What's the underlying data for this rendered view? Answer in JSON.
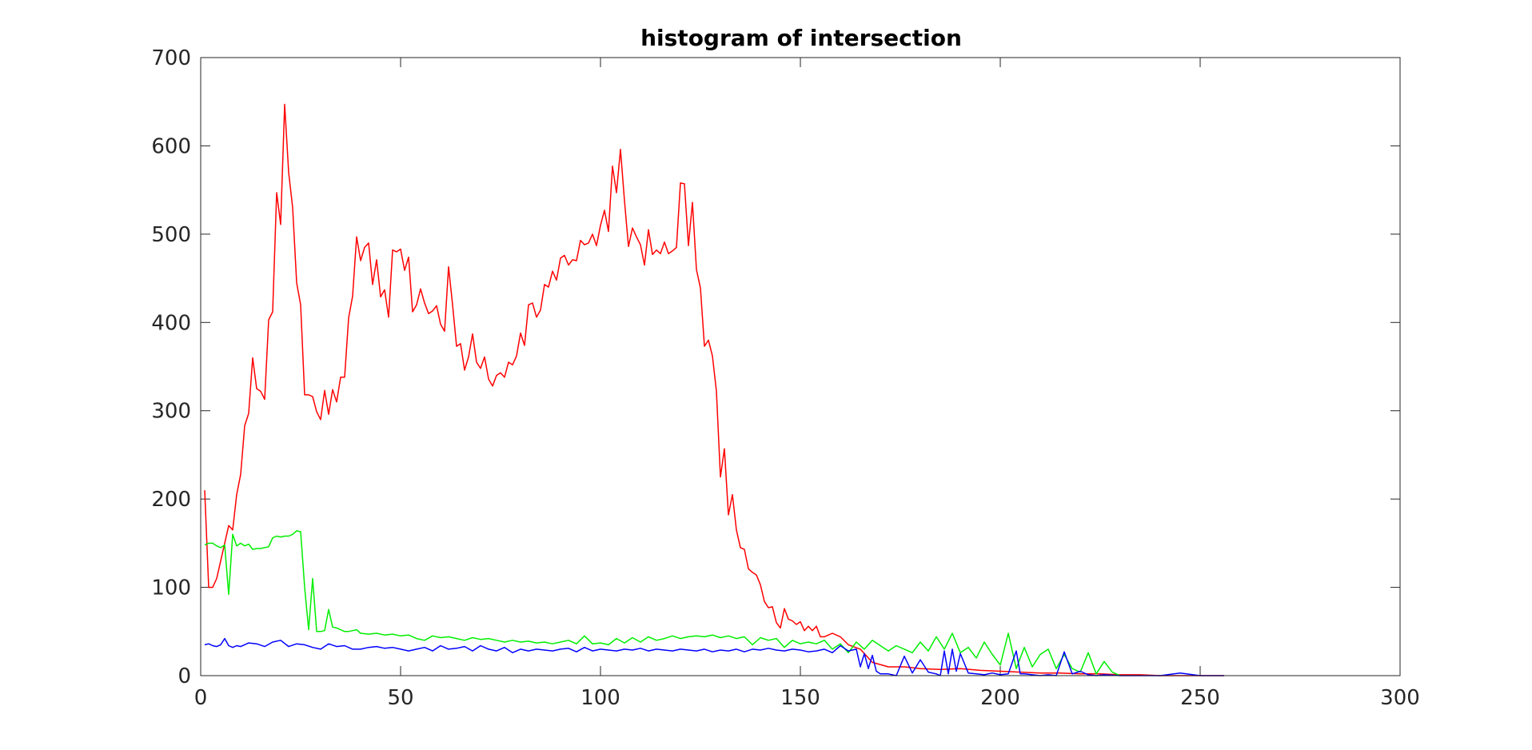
{
  "chart_data": {
    "type": "line",
    "title": "histogram of intersection",
    "xlabel": "",
    "ylabel": "",
    "xlim": [
      0,
      300
    ],
    "ylim": [
      0,
      700
    ],
    "xticks": [
      0,
      50,
      100,
      150,
      200,
      250,
      300
    ],
    "yticks": [
      0,
      100,
      200,
      300,
      400,
      500,
      600,
      700
    ],
    "grid": false,
    "legend": "none",
    "series": [
      {
        "color": "#ff0000",
        "x": [
          1,
          2,
          3,
          4,
          5,
          6,
          7,
          8,
          9,
          10,
          11,
          12,
          13,
          14,
          15,
          16,
          17,
          18,
          19,
          20,
          21,
          22,
          23,
          24,
          25,
          26,
          27,
          28,
          29,
          30,
          31,
          32,
          33,
          34,
          35,
          36,
          37,
          38,
          39,
          40,
          41,
          42,
          43,
          44,
          45,
          46,
          47,
          48,
          49,
          50,
          51,
          52,
          53,
          54,
          55,
          56,
          57,
          58,
          59,
          60,
          61,
          62,
          63,
          64,
          65,
          66,
          67,
          68,
          69,
          70,
          71,
          72,
          73,
          74,
          75,
          76,
          77,
          78,
          79,
          80,
          81,
          82,
          83,
          84,
          85,
          86,
          87,
          88,
          89,
          90,
          91,
          92,
          93,
          94,
          95,
          96,
          97,
          98,
          99,
          100,
          101,
          102,
          103,
          104,
          105,
          106,
          107,
          108,
          109,
          110,
          111,
          112,
          113,
          114,
          115,
          116,
          117,
          118,
          119,
          120,
          121,
          122,
          123,
          124,
          125,
          126,
          127,
          128,
          129,
          130,
          131,
          132,
          133,
          134,
          135,
          136,
          137,
          138,
          139,
          140,
          141,
          142,
          143,
          144,
          145,
          146,
          147,
          148,
          149,
          150,
          151,
          152,
          153,
          154,
          155,
          156,
          157,
          158,
          160,
          162,
          165,
          168,
          172,
          176,
          180,
          185,
          190,
          195,
          200,
          205,
          210,
          215,
          220,
          225,
          230,
          235,
          240,
          245,
          250,
          256
        ],
        "y": [
          210,
          100,
          100,
          110,
          130,
          150,
          170,
          165,
          205,
          228,
          283,
          297,
          360,
          325,
          322,
          313,
          403,
          412,
          547,
          511,
          647,
          570,
          530,
          445,
          420,
          318,
          318,
          316,
          299,
          290,
          323,
          296,
          324,
          310,
          338,
          338,
          405,
          430,
          497,
          470,
          485,
          490,
          443,
          471,
          429,
          437,
          406,
          482,
          480,
          483,
          459,
          474,
          412,
          420,
          438,
          422,
          410,
          413,
          419,
          398,
          390,
          463,
          420,
          373,
          376,
          346,
          361,
          387,
          355,
          348,
          361,
          336,
          328,
          340,
          343,
          338,
          355,
          352,
          362,
          388,
          374,
          420,
          422,
          406,
          414,
          443,
          440,
          458,
          448,
          473,
          476,
          465,
          471,
          470,
          493,
          488,
          490,
          500,
          487,
          510,
          527,
          503,
          577,
          547,
          596,
          538,
          486,
          507,
          497,
          488,
          465,
          505,
          477,
          482,
          478,
          491,
          478,
          481,
          485,
          558,
          557,
          487,
          536,
          460,
          439,
          373,
          380,
          362,
          322,
          225,
          257,
          182,
          205,
          165,
          145,
          143,
          121,
          117,
          114,
          103,
          84,
          77,
          78,
          60,
          54,
          76,
          64,
          62,
          58,
          61,
          51,
          56,
          51,
          56,
          44,
          44,
          46,
          48,
          44,
          35,
          30,
          15,
          10,
          10,
          8,
          7,
          8,
          6,
          5,
          4,
          3,
          3,
          2,
          2,
          1,
          1,
          0,
          0,
          0,
          0
        ]
      },
      {
        "color": "#00ee00",
        "x": [
          1,
          2,
          3,
          4,
          5,
          6,
          7,
          8,
          9,
          10,
          11,
          12,
          13,
          14,
          15,
          16,
          17,
          18,
          19,
          20,
          21,
          22,
          23,
          24,
          25,
          26,
          27,
          28,
          29,
          30,
          31,
          32,
          33,
          34,
          35,
          36,
          37,
          38,
          39,
          40,
          42,
          44,
          46,
          48,
          50,
          52,
          54,
          56,
          58,
          60,
          62,
          64,
          66,
          68,
          70,
          72,
          74,
          76,
          78,
          80,
          82,
          84,
          86,
          88,
          90,
          92,
          94,
          96,
          98,
          100,
          102,
          104,
          106,
          108,
          110,
          112,
          114,
          116,
          118,
          120,
          122,
          124,
          126,
          128,
          130,
          132,
          134,
          136,
          138,
          140,
          142,
          144,
          146,
          148,
          150,
          152,
          154,
          156,
          158,
          160,
          162,
          164,
          166,
          168,
          170,
          172,
          174,
          176,
          178,
          180,
          182,
          184,
          186,
          188,
          190,
          192,
          194,
          196,
          198,
          200,
          202,
          204,
          206,
          208,
          210,
          212,
          214,
          216,
          218,
          220,
          222,
          224,
          226,
          228,
          230
        ],
        "y": [
          148,
          150,
          150,
          147,
          145,
          148,
          92,
          160,
          147,
          150,
          147,
          149,
          143,
          144,
          144,
          145,
          146,
          156,
          158,
          157,
          158,
          158,
          160,
          164,
          163,
          100,
          52,
          110,
          50,
          50,
          51,
          75,
          55,
          54,
          52,
          50,
          50,
          51,
          52,
          48,
          47,
          48,
          46,
          47,
          45,
          46,
          42,
          40,
          45,
          43,
          44,
          42,
          40,
          43,
          41,
          42,
          40,
          38,
          40,
          38,
          39,
          37,
          38,
          36,
          38,
          40,
          36,
          45,
          36,
          37,
          35,
          42,
          37,
          43,
          38,
          44,
          40,
          42,
          45,
          42,
          44,
          45,
          44,
          46,
          43,
          45,
          42,
          44,
          35,
          43,
          40,
          42,
          32,
          40,
          36,
          38,
          36,
          40,
          30,
          36,
          26,
          38,
          30,
          40,
          34,
          28,
          34,
          30,
          26,
          38,
          28,
          44,
          30,
          48,
          26,
          32,
          20,
          38,
          24,
          12,
          48,
          8,
          32,
          10,
          24,
          30,
          8,
          24,
          8,
          4,
          26,
          2,
          16,
          4,
          0
        ]
      },
      {
        "color": "#0000ff",
        "x": [
          1,
          2,
          3,
          4,
          5,
          6,
          7,
          8,
          9,
          10,
          12,
          14,
          16,
          18,
          20,
          22,
          24,
          26,
          28,
          30,
          32,
          34,
          36,
          38,
          40,
          42,
          44,
          46,
          48,
          50,
          52,
          54,
          56,
          58,
          60,
          62,
          64,
          66,
          68,
          70,
          72,
          74,
          76,
          78,
          80,
          82,
          84,
          86,
          88,
          90,
          92,
          94,
          96,
          98,
          100,
          102,
          104,
          106,
          108,
          110,
          112,
          114,
          116,
          118,
          120,
          122,
          124,
          126,
          128,
          130,
          132,
          134,
          136,
          138,
          140,
          142,
          144,
          146,
          148,
          150,
          152,
          154,
          156,
          158,
          160,
          162,
          164,
          165,
          166,
          167,
          168,
          169,
          170,
          172,
          174,
          176,
          178,
          180,
          182,
          184,
          185,
          186,
          187,
          188,
          189,
          190,
          192,
          194,
          196,
          198,
          200,
          202,
          204,
          205,
          206,
          208,
          210,
          212,
          214,
          216,
          218,
          220,
          222,
          224,
          226,
          230,
          235,
          240,
          245,
          250,
          256
        ],
        "y": [
          35,
          36,
          34,
          33,
          35,
          42,
          34,
          32,
          34,
          33,
          37,
          36,
          33,
          38,
          40,
          33,
          36,
          35,
          32,
          30,
          36,
          33,
          34,
          30,
          30,
          32,
          33,
          31,
          32,
          30,
          28,
          30,
          32,
          28,
          34,
          30,
          31,
          33,
          28,
          34,
          30,
          28,
          32,
          26,
          30,
          28,
          30,
          29,
          28,
          30,
          31,
          27,
          32,
          28,
          30,
          29,
          28,
          30,
          29,
          31,
          28,
          30,
          29,
          28,
          30,
          29,
          28,
          30,
          27,
          29,
          28,
          30,
          27,
          30,
          29,
          31,
          29,
          28,
          30,
          29,
          27,
          28,
          30,
          26,
          34,
          28,
          30,
          10,
          25,
          8,
          23,
          5,
          2,
          2,
          0,
          22,
          3,
          18,
          4,
          2,
          0,
          28,
          2,
          30,
          5,
          25,
          3,
          2,
          1,
          3,
          1,
          2,
          28,
          2,
          2,
          1,
          0,
          1,
          0,
          27,
          2,
          5,
          1,
          0,
          1,
          0,
          0,
          0,
          3,
          0,
          0
        ]
      }
    ]
  }
}
